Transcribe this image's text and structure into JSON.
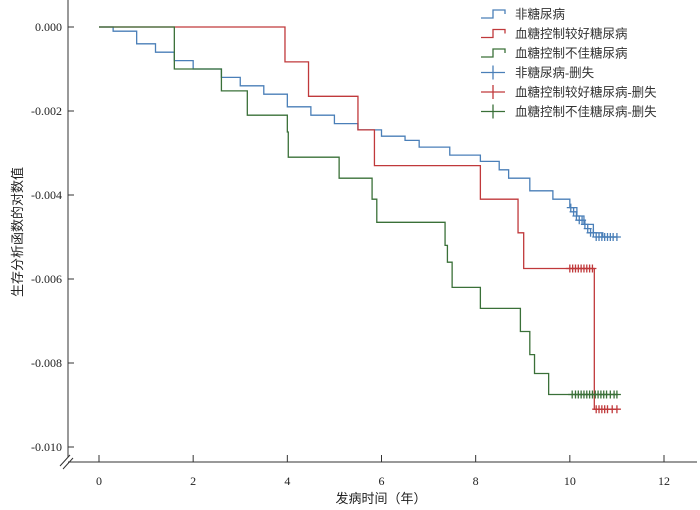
{
  "chart_data": {
    "type": "line",
    "subtype": "step-survival",
    "title": "",
    "xlabel": "发病时间（年）",
    "ylabel": "生存分析函数的对数值",
    "xlim": [
      -0.6,
      12.6
    ],
    "ylim": [
      -0.0104,
      0.0003
    ],
    "xticks": [
      0,
      2,
      4,
      6,
      8,
      10,
      12
    ],
    "xtick_labels": [
      "0",
      "2",
      "4",
      "6",
      "8",
      "10",
      "12"
    ],
    "yticks": [
      0,
      -0.002,
      -0.004,
      -0.006,
      -0.008,
      -0.01
    ],
    "ytick_labels": [
      "0.000",
      "-0.002",
      "-0.004",
      "-0.006",
      "-0.008",
      "-0.010"
    ],
    "grid": false,
    "legend_position": "top-right",
    "series": [
      {
        "name": "非糖尿病",
        "color": "#4a7fb8",
        "x": [
          0,
          0.3,
          0.8,
          1.2,
          1.6,
          2.0,
          2.6,
          3.0,
          3.5,
          4.0,
          4.5,
          5.0,
          5.5,
          6.0,
          6.5,
          6.8,
          7.45,
          8.1,
          8.5,
          8.7,
          9.15,
          9.64,
          10.0,
          10.15,
          10.3,
          10.5,
          10.7,
          11.0
        ],
        "y": [
          0,
          -0.0001,
          -0.0004,
          -0.0006,
          -0.0008,
          -0.001,
          -0.0012,
          -0.0014,
          -0.0016,
          -0.0019,
          -0.0021,
          -0.0023,
          -0.00245,
          -0.0026,
          -0.0027,
          -0.00286,
          -0.00305,
          -0.0032,
          -0.0034,
          -0.0036,
          -0.0039,
          -0.0041,
          -0.0043,
          -0.0045,
          -0.0047,
          -0.0049,
          -0.005,
          -0.005
        ]
      },
      {
        "name": "血糖控制较好糖尿病",
        "color": "#c0393b",
        "x": [
          0,
          3.95,
          4.45,
          5.5,
          5.85,
          8.1,
          8.9,
          9.02,
          10.52,
          11.0
        ],
        "y": [
          0,
          -0.00083,
          -0.00165,
          -0.00245,
          -0.0033,
          -0.0041,
          -0.0049,
          -0.00575,
          -0.0091,
          -0.0091
        ]
      },
      {
        "name": "血糖控制不佳糖尿病",
        "color": "#3a7038",
        "x": [
          0,
          1.6,
          2.6,
          3.15,
          4.0,
          4.02,
          5.1,
          5.8,
          5.9,
          7.35,
          7.4,
          7.5,
          8.1,
          8.95,
          9.15,
          9.25,
          9.55,
          11.0
        ],
        "y": [
          0,
          -0.001,
          -0.00152,
          -0.0021,
          -0.0025,
          -0.0031,
          -0.0036,
          -0.0041,
          -0.00465,
          -0.0052,
          -0.0056,
          -0.0062,
          -0.0067,
          -0.00725,
          -0.0078,
          -0.00825,
          -0.00875,
          -0.00875
        ]
      }
    ],
    "censored": [
      {
        "name": "非糖尿病-删失",
        "color": "#4a7fb8",
        "x": [
          10.02,
          10.08,
          10.14,
          10.2,
          10.26,
          10.32,
          10.38,
          10.44,
          10.5,
          10.56,
          10.62,
          10.68,
          10.74,
          10.8,
          10.86,
          10.92,
          11.0
        ],
        "y": [
          -0.0043,
          -0.0044,
          -0.0045,
          -0.0046,
          -0.0046,
          -0.0047,
          -0.0048,
          -0.0049,
          -0.0049,
          -0.005,
          -0.005,
          -0.005,
          -0.005,
          -0.005,
          -0.005,
          -0.005,
          -0.005
        ]
      },
      {
        "name": "血糖控制较好糖尿病-删失",
        "color": "#c0393b",
        "x": [
          10.0,
          10.06,
          10.12,
          10.18,
          10.24,
          10.3,
          10.36,
          10.42,
          10.48,
          10.56,
          10.62,
          10.68,
          10.74,
          10.8,
          10.9,
          11.0
        ],
        "y": [
          -0.00575,
          -0.00575,
          -0.00575,
          -0.00575,
          -0.00575,
          -0.00575,
          -0.00575,
          -0.00575,
          -0.00575,
          -0.0091,
          -0.0091,
          -0.0091,
          -0.0091,
          -0.0091,
          -0.0091,
          -0.0091
        ]
      },
      {
        "name": "血糖控制不佳糖尿病-删失",
        "color": "#3a7038",
        "x": [
          10.05,
          10.12,
          10.18,
          10.24,
          10.3,
          10.36,
          10.42,
          10.48,
          10.54,
          10.6,
          10.66,
          10.72,
          10.78,
          10.86,
          10.94,
          11.0
        ],
        "y": [
          -0.00875,
          -0.00875,
          -0.00875,
          -0.00875,
          -0.00875,
          -0.00875,
          -0.00875,
          -0.00875,
          -0.00875,
          -0.00875,
          -0.00875,
          -0.00875,
          -0.00875,
          -0.00875,
          -0.00875,
          -0.00875
        ]
      }
    ],
    "legend": [
      {
        "label": "非糖尿病",
        "color": "#4a7fb8",
        "symbol": "step"
      },
      {
        "label": "血糖控制较好糖尿病",
        "color": "#c0393b",
        "symbol": "step"
      },
      {
        "label": "血糖控制不佳糖尿病",
        "color": "#3a7038",
        "symbol": "step"
      },
      {
        "label": "非糖尿病-删失",
        "color": "#4a7fb8",
        "symbol": "plus"
      },
      {
        "label": "血糖控制较好糖尿病-删失",
        "color": "#c0393b",
        "symbol": "plus"
      },
      {
        "label": "血糖控制不佳糖尿病-删失",
        "color": "#3a7038",
        "symbol": "plus"
      }
    ]
  }
}
